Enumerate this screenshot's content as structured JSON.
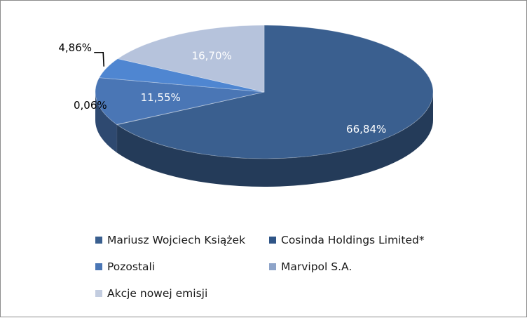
{
  "chart_data": {
    "type": "pie",
    "variant": "3d",
    "labels": [
      "Mariusz Wojciech Książek",
      "Cosinda Holdings Limited*",
      "Pozostali",
      "Marvipol S.A.",
      "Akcje nowej emisji"
    ],
    "values": [
      66.84,
      0.06,
      11.55,
      4.86,
      16.7
    ],
    "data_labels": [
      "66,84%",
      "0,06%",
      "11,55%",
      "4,86%",
      "16,70%"
    ],
    "colors": [
      "#3a5f8f",
      "#2f5587",
      "#4a76b5",
      "#4f86d1",
      "#b6c3dc"
    ],
    "legend": {
      "position": "bottom",
      "items": [
        {
          "label": "Mariusz Wojciech Książek",
          "color": "#3a5f8f"
        },
        {
          "label": "Cosinda Holdings Limited*",
          "color": "#2f5587"
        },
        {
          "label": "Pozostali",
          "color": "#4a76b5"
        },
        {
          "label": "Marvipol S.A.",
          "color": "#8ea4c9"
        },
        {
          "label": "Akcje nowej emisji",
          "color": "#c3cde0"
        }
      ]
    },
    "title": ""
  }
}
